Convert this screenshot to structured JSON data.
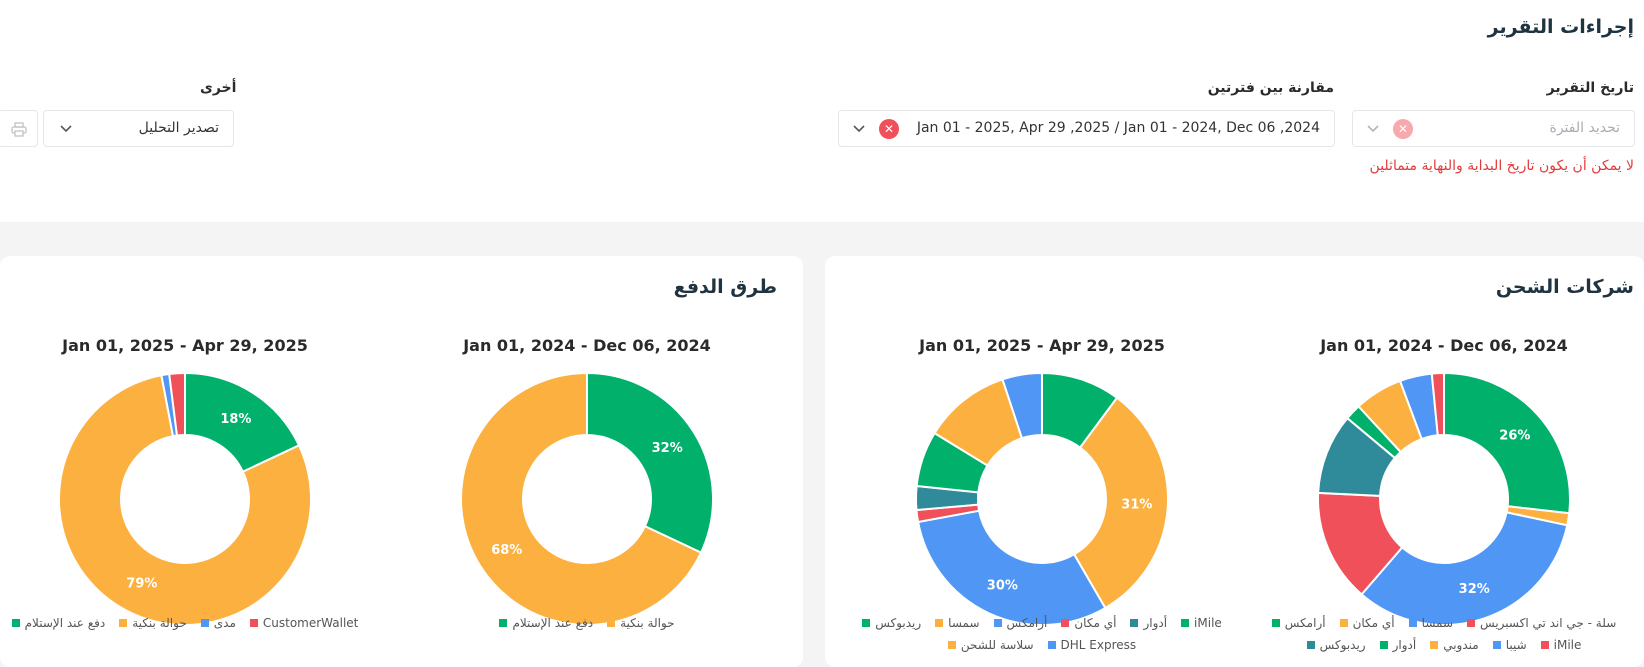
{
  "header": {
    "title": "إجراءات التقرير"
  },
  "filters": {
    "report_date_label": "تاريخ التقرير",
    "report_date_placeholder": "تحديد الفترة",
    "error_message": "لا يمكن أن يكون تاريخ البداية والنهاية متماثلين",
    "compare_label": "مقارنة بين فترتين",
    "compare_value": "Jan 01 - 2025, Apr 29 ,2025 / Jan 01 - 2024, Dec 06 ,2024",
    "other_label": "أخرى",
    "export_value": "تصدير التحليل"
  },
  "colors": {
    "green": "#00b06b",
    "orange": "#fbb040",
    "blue": "#4f96f5",
    "red": "#f0505a",
    "teal": "#2f8a9a",
    "error": "#e23a3a"
  },
  "cards": {
    "shipping": {
      "title": "شركات الشحن"
    },
    "payment": {
      "title": "طرق الدفع"
    }
  },
  "chart_data": [
    {
      "id": "shipping-2024",
      "type": "pie",
      "title": "Jan 01, 2024 - Dec 06, 2024",
      "slices": [
        {
          "name": "أرامكس",
          "value": 26,
          "color": "#00b06b",
          "label": "26%"
        },
        {
          "name": "أي مكان",
          "value": 1.5,
          "color": "#fbb040"
        },
        {
          "name": "سمسا",
          "value": 32,
          "color": "#4f96f5",
          "label": "32%"
        },
        {
          "name": "سلة - جي اند تي اكسبريس",
          "value": 14,
          "color": "#f0505a"
        },
        {
          "name": "ريدبوكس",
          "value": 10,
          "color": "#2f8a9a"
        },
        {
          "name": "أدوار",
          "value": 2,
          "color": "#00b06b"
        },
        {
          "name": "مندوبي",
          "value": 6,
          "color": "#fbb040"
        },
        {
          "name": "شيبا",
          "value": 4,
          "color": "#4f96f5"
        },
        {
          "name": "iMile",
          "value": 1.5,
          "color": "#f0505a"
        }
      ],
      "legend": [
        [
          {
            "name": "سلة - جي اند تي اكسبريس",
            "color": "#f0505a"
          },
          {
            "name": "سمسا",
            "color": "#4f96f5"
          },
          {
            "name": "أي مكان",
            "color": "#fbb040"
          },
          {
            "name": "أرامكس",
            "color": "#00b06b"
          }
        ],
        [
          {
            "name": "iMile",
            "color": "#f0505a"
          },
          {
            "name": "شيبا",
            "color": "#4f96f5"
          },
          {
            "name": "مندوبي",
            "color": "#fbb040"
          },
          {
            "name": "أدوار",
            "color": "#00b06b"
          },
          {
            "name": "ريدبوكس",
            "color": "#2f8a9a"
          }
        ]
      ]
    },
    {
      "id": "shipping-2025",
      "type": "pie",
      "title": "Jan 01, 2025 - Apr 29, 2025",
      "slices": [
        {
          "name": "iMile",
          "value": 10,
          "color": "#00b06b"
        },
        {
          "name": "سمسا",
          "value": 31,
          "color": "#fbb040",
          "label": "31%"
        },
        {
          "name": "أرامكس",
          "value": 30,
          "color": "#4f96f5",
          "label": "30%"
        },
        {
          "name": "أي مكان",
          "value": 1.5,
          "color": "#f0505a"
        },
        {
          "name": "أدوار",
          "value": 3,
          "color": "#2f8a9a"
        },
        {
          "name": "ريدبوكس",
          "value": 7,
          "color": "#00b06b"
        },
        {
          "name": "سلاسة للشحن",
          "value": 11,
          "color": "#fbb040"
        },
        {
          "name": "DHL Express",
          "value": 5,
          "color": "#4f96f5"
        }
      ],
      "legend": [
        [
          {
            "name": "iMile",
            "color": "#00b06b"
          },
          {
            "name": "أدوار",
            "color": "#2f8a9a"
          },
          {
            "name": "أي مكان",
            "color": "#f0505a"
          },
          {
            "name": "أرامكس",
            "color": "#4f96f5"
          },
          {
            "name": "سمسا",
            "color": "#fbb040"
          },
          {
            "name": "ريدبوكس",
            "color": "#00b06b"
          }
        ],
        [
          {
            "name": "DHL Express",
            "color": "#4f96f5"
          },
          {
            "name": "سلاسة للشحن",
            "color": "#fbb040"
          }
        ]
      ]
    },
    {
      "id": "payment-2024",
      "type": "pie",
      "title": "Jan 01, 2024 - Dec 06, 2024",
      "slices": [
        {
          "name": "دفع عند الإستلام",
          "value": 32,
          "color": "#00b06b",
          "label": "32%"
        },
        {
          "name": "حوالة بنكية",
          "value": 68,
          "color": "#fbb040",
          "label": "68%"
        }
      ],
      "legend": [
        [
          {
            "name": "حوالة بنكية",
            "color": "#fbb040"
          },
          {
            "name": "دفع عند الإستلام",
            "color": "#00b06b"
          }
        ]
      ]
    },
    {
      "id": "payment-2025",
      "type": "pie",
      "title": "Jan 01, 2025 - Apr 29, 2025",
      "slices": [
        {
          "name": "دفع عند الإستلام",
          "value": 18,
          "color": "#00b06b",
          "label": "18%"
        },
        {
          "name": "حوالة بنكية",
          "value": 79,
          "color": "#fbb040",
          "label": "79%"
        },
        {
          "name": "مدى",
          "value": 1,
          "color": "#4f96f5"
        },
        {
          "name": "CustomerWallet",
          "value": 2,
          "color": "#f0505a"
        }
      ],
      "legend": [
        [
          {
            "name": "CustomerWallet",
            "color": "#f0505a"
          },
          {
            "name": "مدى",
            "color": "#4f96f5"
          },
          {
            "name": "حوالة بنكية",
            "color": "#fbb040"
          },
          {
            "name": "دفع عند الإستلام",
            "color": "#00b06b"
          }
        ]
      ]
    }
  ]
}
